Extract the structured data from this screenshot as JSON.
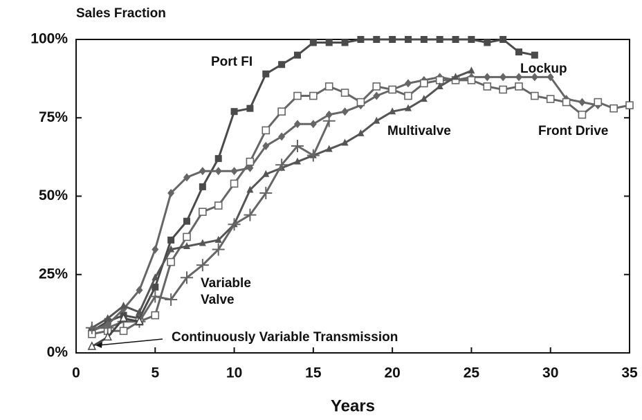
{
  "chart_data": {
    "type": "line",
    "title": "Sales Fraction",
    "x_label": "Years",
    "xlim": [
      0,
      35
    ],
    "xticks": [
      0,
      5,
      10,
      15,
      20,
      25,
      30,
      35
    ],
    "ylim": [
      0,
      100
    ],
    "yticks": [
      {
        "value": 0,
        "label": "0%"
      },
      {
        "value": 25,
        "label": "25%"
      },
      {
        "value": 50,
        "label": "50%"
      },
      {
        "value": 75,
        "label": "75%"
      },
      {
        "value": 100,
        "label": "100%"
      }
    ],
    "grid": false,
    "series": [
      {
        "name": "Port FI",
        "color": "#4a4a4a",
        "marker": "square",
        "x": [
          1,
          2,
          3,
          4,
          5,
          6,
          7,
          8,
          9,
          10,
          11,
          12,
          13,
          14,
          15,
          16,
          17,
          18,
          19,
          20,
          21,
          22,
          23,
          24,
          25,
          26,
          27,
          28,
          29
        ],
        "values": [
          7,
          10,
          12,
          11,
          21,
          36,
          42,
          53,
          62,
          77,
          78,
          89,
          92,
          95,
          99,
          99,
          99,
          100,
          100,
          100,
          100,
          100,
          100,
          100,
          100,
          99,
          100,
          96,
          95
        ]
      },
      {
        "name": "Lockup",
        "color": "#666666",
        "marker": "diamond",
        "x": [
          1,
          2,
          3,
          4,
          5,
          6,
          7,
          8,
          9,
          10,
          11,
          12,
          13,
          14,
          15,
          16,
          17,
          18,
          19,
          20,
          21,
          22,
          23,
          24,
          25,
          26,
          27,
          28,
          29,
          30,
          31,
          32,
          33
        ],
        "values": [
          7,
          9,
          14,
          20,
          33,
          51,
          56,
          58,
          58,
          58,
          59,
          66,
          69,
          73,
          73,
          76,
          77,
          79,
          82,
          84,
          86,
          87,
          88,
          87,
          88,
          88,
          88,
          88,
          88,
          88,
          81,
          80,
          79
        ]
      },
      {
        "name": "Front Drive",
        "color": "#666666",
        "marker": "open-square",
        "x": [
          1,
          2,
          3,
          4,
          5,
          6,
          7,
          8,
          9,
          10,
          11,
          12,
          13,
          14,
          15,
          16,
          17,
          18,
          19,
          20,
          21,
          22,
          23,
          24,
          25,
          26,
          27,
          28,
          29,
          30,
          31,
          32,
          33,
          34,
          35
        ],
        "values": [
          6,
          7,
          7,
          10,
          12,
          29,
          37,
          45,
          47,
          54,
          61,
          71,
          77,
          82,
          82,
          85,
          83,
          80,
          85,
          84,
          82,
          86,
          87,
          87,
          87,
          85,
          84,
          85,
          82,
          81,
          80,
          76,
          80,
          78,
          79
        ]
      },
      {
        "name": "Multivalve",
        "color": "#555555",
        "marker": "triangle",
        "x": [
          1,
          2,
          3,
          4,
          5,
          6,
          7,
          8,
          9,
          10,
          11,
          12,
          13,
          14,
          15,
          16,
          17,
          18,
          19,
          20,
          21,
          22,
          23,
          24,
          25
        ],
        "values": [
          8,
          11,
          15,
          13,
          24,
          33,
          34,
          35,
          36,
          41,
          52,
          57,
          59,
          61,
          63,
          65,
          67,
          70,
          74,
          77,
          78,
          81,
          85,
          88,
          90
        ]
      },
      {
        "name": "Variable Valve",
        "color": "#666666",
        "marker": "plus",
        "x": [
          1,
          2,
          3,
          4,
          5,
          6,
          7,
          8,
          9,
          10,
          11,
          12,
          13,
          14,
          15,
          16
        ],
        "values": [
          8,
          8,
          10,
          10,
          18,
          17,
          24,
          28,
          33,
          41,
          44,
          51,
          60,
          66,
          63,
          74
        ]
      },
      {
        "name": "Continuously Variable Transmission",
        "color": "#444444",
        "marker": "open-triangle",
        "x": [
          1,
          2,
          3,
          4
        ],
        "values": [
          2,
          5,
          11,
          10
        ]
      }
    ]
  }
}
